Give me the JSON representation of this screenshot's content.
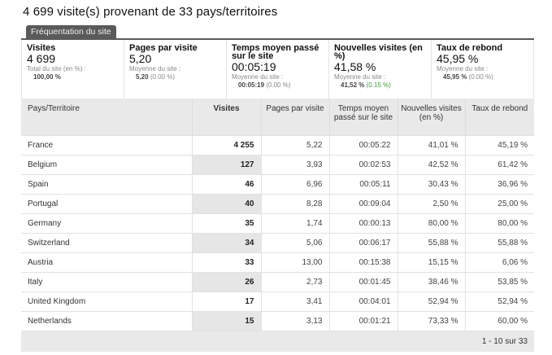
{
  "page": {
    "title": "4 699 visite(s) provenant de 33 pays/territoires",
    "tab_label": "Fréquentation du site"
  },
  "summary": [
    {
      "label": "Visites",
      "value": "4 699",
      "sub1": "Total du site (en %) :",
      "sub_bold": "100,00 %",
      "sub_delta": ""
    },
    {
      "label": "Pages par visite",
      "value": "5,20",
      "sub1": "Moyenne du site :",
      "sub_bold": "5,20",
      "sub_delta": "(0.00 %)"
    },
    {
      "label": "Temps moyen passé sur le site",
      "value": "00:05:19",
      "sub1": "Moyenne du site :",
      "sub_bold": "00:05:19",
      "sub_delta": "(0.00 %)"
    },
    {
      "label": "Nouvelles visites (en %)",
      "value": "41,58 %",
      "sub1": "Moyenne du site :",
      "sub_bold": "41,52 %",
      "sub_delta": "(0.15 %)"
    },
    {
      "label": "Taux de rebond",
      "value": "45,95 %",
      "sub1": "Moyenne du site :",
      "sub_bold": "45,95 %",
      "sub_delta": "(0.00 %)"
    }
  ],
  "table": {
    "headers": [
      "Pays/Territoire",
      "Visites",
      "Pages par visite",
      "Temps moyen passé sur le site",
      "Nouvelles visites (en %)",
      "Taux de rebond"
    ],
    "rows": [
      [
        "France",
        "4 255",
        "5,22",
        "00:05:22",
        "41,01 %",
        "45,19 %"
      ],
      [
        "Belgium",
        "127",
        "3,93",
        "00:02:53",
        "42,52 %",
        "61,42 %"
      ],
      [
        "Spain",
        "46",
        "6,96",
        "00:05:11",
        "30,43 %",
        "36,96 %"
      ],
      [
        "Portugal",
        "40",
        "8,28",
        "00:09:04",
        "2,50 %",
        "25,00 %"
      ],
      [
        "Germany",
        "35",
        "1,74",
        "00:00:13",
        "80,00 %",
        "80,00 %"
      ],
      [
        "Switzerland",
        "34",
        "5,06",
        "00:06:17",
        "55,88 %",
        "55,88 %"
      ],
      [
        "Austria",
        "33",
        "13,00",
        "00:15:38",
        "15,15 %",
        "6,06 %"
      ],
      [
        "Italy",
        "26",
        "2,73",
        "00:01:45",
        "38,46 %",
        "53,85 %"
      ],
      [
        "United Kingdom",
        "17",
        "3,41",
        "00:04:01",
        "52,94 %",
        "52,94 %"
      ],
      [
        "Netherlands",
        "15",
        "3,13",
        "00:01:21",
        "73,33 %",
        "60,00 %"
      ]
    ],
    "pagination": "1 - 10 sur 33"
  }
}
